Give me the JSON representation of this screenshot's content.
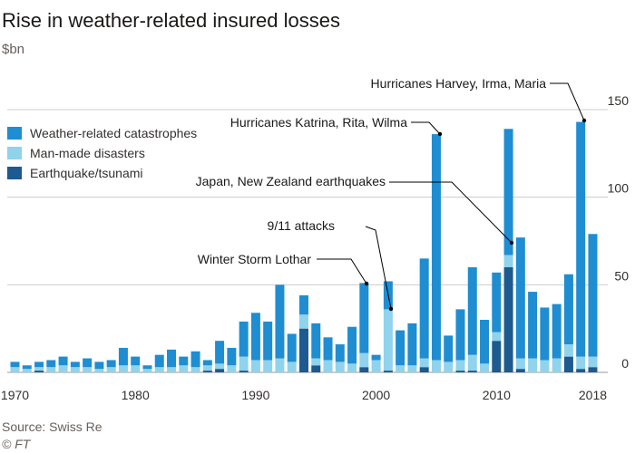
{
  "header": {
    "title": "Rise in weather-related insured losses",
    "subtitle": "$bn"
  },
  "footer": {
    "source": "Source: Swiss Re",
    "credit": "© FT"
  },
  "colors": {
    "weather": "#1f8dd1",
    "manmade": "#8fd3ec",
    "quake": "#1d5a8f",
    "grid": "#cccccc",
    "text": "#33302e",
    "leader": "#000000"
  },
  "chart_data": {
    "type": "bar",
    "stacked": true,
    "title": "Rise in weather-related insured losses",
    "ylabel": "$bn",
    "ylim": [
      0,
      150
    ],
    "yticks": [
      0,
      50,
      100,
      150
    ],
    "xticks": [
      "1970",
      "1980",
      "1990",
      "2000",
      "2010",
      "2018"
    ],
    "grid": true,
    "legend_position": "top-left",
    "categories": [
      1970,
      1971,
      1972,
      1973,
      1974,
      1975,
      1976,
      1977,
      1978,
      1979,
      1980,
      1981,
      1982,
      1983,
      1984,
      1985,
      1986,
      1987,
      1988,
      1989,
      1990,
      1991,
      1992,
      1993,
      1994,
      1995,
      1996,
      1997,
      1998,
      1999,
      2000,
      2001,
      2002,
      2003,
      2004,
      2005,
      2006,
      2007,
      2008,
      2009,
      2010,
      2011,
      2012,
      2013,
      2014,
      2015,
      2016,
      2017,
      2018
    ],
    "series": [
      {
        "name": "Earthquake/tsunami",
        "color": "#1d5a8f",
        "values": [
          0,
          0,
          1,
          0,
          0,
          0,
          0,
          0,
          0,
          0,
          0,
          0,
          0,
          0,
          0,
          0,
          1,
          2,
          0,
          1,
          0,
          0,
          0,
          0,
          25,
          4,
          0,
          0,
          0,
          3,
          0,
          1,
          0,
          0,
          3,
          0,
          0,
          1,
          1,
          0,
          18,
          60,
          2,
          0,
          0,
          0,
          9,
          2,
          3
        ]
      },
      {
        "name": "Man-made disasters",
        "color": "#8fd3ec",
        "values": [
          3,
          2,
          2,
          3,
          4,
          3,
          3,
          2,
          3,
          4,
          4,
          2,
          3,
          3,
          4,
          3,
          3,
          3,
          4,
          8,
          7,
          7,
          8,
          6,
          8,
          4,
          7,
          6,
          5,
          8,
          7,
          35,
          4,
          4,
          5,
          7,
          6,
          6,
          9,
          5,
          5,
          7,
          6,
          8,
          7,
          8,
          7,
          7,
          6
        ]
      },
      {
        "name": "Weather-related catastrophes",
        "color": "#1f8dd1",
        "values": [
          3,
          2,
          3,
          4,
          5,
          3,
          5,
          4,
          4,
          10,
          5,
          2,
          7,
          10,
          5,
          9,
          3,
          13,
          10,
          20,
          27,
          22,
          42,
          16,
          11,
          20,
          13,
          10,
          21,
          40,
          3,
          16,
          20,
          24,
          57,
          129,
          15,
          29,
          50,
          25,
          34,
          72,
          69,
          38,
          30,
          31,
          40,
          134,
          70
        ]
      }
    ],
    "annotations": [
      {
        "text": "Winter Storm Lothar",
        "year": 1999
      },
      {
        "text": "9/11 attacks",
        "year": 2001
      },
      {
        "text": "Japan, New Zealand earthquakes",
        "year": 2011
      },
      {
        "text": "Hurricanes Katrina, Rita, Wilma",
        "year": 2005
      },
      {
        "text": "Hurricanes Harvey, Irma, Maria",
        "year": 2017
      }
    ]
  }
}
